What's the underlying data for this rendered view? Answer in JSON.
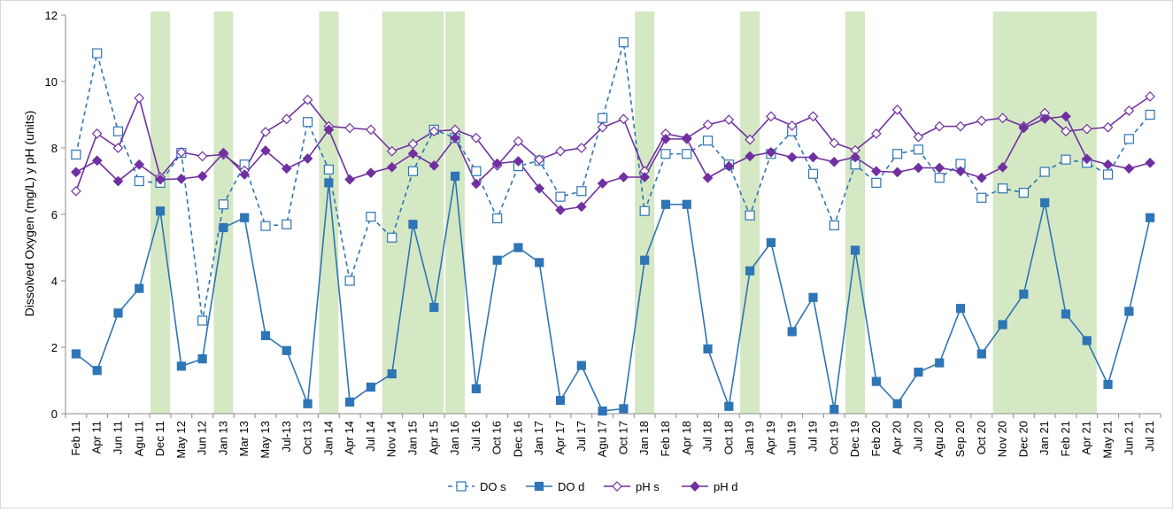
{
  "chart_data": {
    "type": "line",
    "title": "",
    "xlabel": "",
    "ylabel": "Dissolved Oxygen (mg/L) y pH (units)",
    "ylim": [
      0,
      12
    ],
    "yticks": [
      "0",
      "2",
      "4",
      "6",
      "8",
      "10",
      "12"
    ],
    "grid": false,
    "legend": "bottom",
    "categories": [
      "Feb 11",
      "Apr 11",
      "Jun 11",
      "Agu 11",
      "Dec 11",
      "May 12",
      "Jun 12",
      "Jan 13",
      "Mar 13",
      "May 13",
      "Jul-13",
      "Oct 13",
      "Jan 14",
      "Apr 14",
      "Jul 14",
      "Nov 14",
      "Jan 15",
      "Apr 15",
      "Jan 16",
      "Jul 16",
      "Oct 16",
      "Dec 16",
      "Jan 17",
      "Apr 17",
      "Jul 17",
      "Agu 17",
      "Oct 17",
      "Jan 18",
      "Feb 18",
      "Apr 18",
      "Jul 18",
      "Oct 18",
      "Jan 19",
      "Apr 19",
      "Jun 19",
      "Jul 19",
      "Oct 19",
      "Dec 19",
      "Feb 20",
      "Apr 20",
      "Jul 20",
      "Agu 20",
      "Sep 20",
      "Oct 20",
      "Nov 20",
      "Dec 20",
      "Jan 21",
      "Feb 21",
      "Apr 21",
      "May 21",
      "Jun 21",
      "Jul 21"
    ],
    "shaded_periods": [
      [
        4,
        4
      ],
      [
        7,
        7
      ],
      [
        12,
        12
      ],
      [
        15,
        17
      ],
      [
        18,
        18
      ],
      [
        27,
        27
      ],
      [
        32,
        32
      ],
      [
        37,
        37
      ],
      [
        44,
        48
      ]
    ],
    "shade_color": "#d5e8c4",
    "series": [
      {
        "name": "DO s",
        "color": "#2e75b6",
        "dash": true,
        "marker": "square-open",
        "values": [
          7.8,
          10.85,
          8.5,
          7.0,
          6.95,
          7.85,
          2.8,
          6.3,
          7.5,
          5.65,
          5.7,
          8.78,
          7.35,
          4.0,
          5.93,
          5.3,
          7.3,
          8.55,
          8.3,
          7.3,
          5.88,
          7.45,
          7.62,
          6.53,
          6.7,
          8.9,
          11.18,
          6.1,
          7.82,
          7.82,
          8.22,
          7.5,
          5.97,
          7.82,
          8.5,
          7.22,
          5.67,
          7.5,
          6.95,
          7.82,
          7.95,
          7.1,
          7.52,
          6.5,
          6.78,
          6.65,
          7.28,
          7.65,
          7.55,
          7.2,
          8.27,
          9.0
        ]
      },
      {
        "name": "DO d",
        "color": "#2e75b6",
        "dash": false,
        "marker": "square-filled",
        "values": [
          1.8,
          1.3,
          3.03,
          3.77,
          6.1,
          1.43,
          1.65,
          5.6,
          5.9,
          2.35,
          1.9,
          0.3,
          6.95,
          0.35,
          0.8,
          1.2,
          5.7,
          3.2,
          7.15,
          0.75,
          4.62,
          5.0,
          4.55,
          0.4,
          1.45,
          0.08,
          0.15,
          4.62,
          6.3,
          6.3,
          1.95,
          0.22,
          4.3,
          5.15,
          2.47,
          3.5,
          0.13,
          4.92,
          0.97,
          0.3,
          1.25,
          1.53,
          3.17,
          1.8,
          2.68,
          3.6,
          6.35,
          3.0,
          2.2,
          0.88,
          3.08,
          5.9
        ]
      },
      {
        "name": "pH s",
        "color": "#7030a0",
        "dash": false,
        "marker": "diamond-open",
        "values": [
          6.7,
          8.43,
          8.0,
          9.5,
          7.12,
          7.87,
          7.75,
          7.8,
          7.32,
          8.48,
          8.87,
          9.45,
          8.65,
          8.6,
          8.55,
          7.9,
          8.12,
          8.5,
          8.55,
          8.3,
          7.47,
          8.2,
          7.65,
          7.9,
          8.0,
          8.62,
          8.87,
          7.3,
          8.43,
          8.3,
          8.7,
          8.85,
          8.25,
          8.95,
          8.67,
          8.95,
          8.15,
          7.93,
          8.43,
          9.15,
          8.33,
          8.65,
          8.65,
          8.82,
          8.9,
          8.65,
          9.05,
          8.5,
          8.57,
          8.62,
          9.12,
          9.55
        ]
      },
      {
        "name": "pH d",
        "color": "#7030a0",
        "dash": false,
        "marker": "diamond-filled",
        "values": [
          7.27,
          7.62,
          7.0,
          7.5,
          7.05,
          7.07,
          7.15,
          7.85,
          7.2,
          7.92,
          7.38,
          7.68,
          8.55,
          7.05,
          7.25,
          7.42,
          7.83,
          7.47,
          8.3,
          6.92,
          7.53,
          7.6,
          6.78,
          6.13,
          6.23,
          6.93,
          7.12,
          7.12,
          8.27,
          8.27,
          7.1,
          7.45,
          7.75,
          7.87,
          7.72,
          7.72,
          7.58,
          7.72,
          7.3,
          7.27,
          7.4,
          7.4,
          7.3,
          7.1,
          7.42,
          8.6,
          8.88,
          8.95,
          7.67,
          7.5,
          7.38,
          7.55
        ]
      }
    ]
  }
}
